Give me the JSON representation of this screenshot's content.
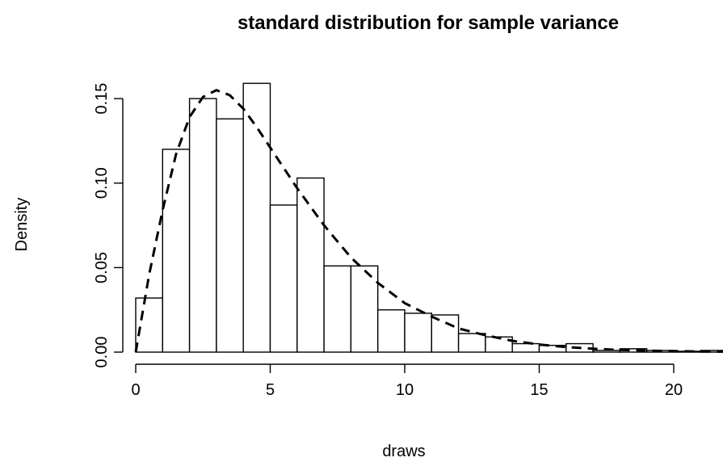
{
  "chart_data": {
    "type": "bar",
    "title": "standard distribution for sample variance",
    "xlabel": "draws",
    "ylabel": "Density",
    "xlim": [
      0,
      22
    ],
    "ylim": [
      0,
      0.16
    ],
    "x_ticks": [
      0,
      5,
      10,
      15,
      20
    ],
    "x_tick_labels": [
      "0",
      "5",
      "10",
      "15",
      "20"
    ],
    "y_ticks": [
      0,
      0.05,
      0.1,
      0.15
    ],
    "y_tick_labels": [
      "0.00",
      "0.05",
      "0.10",
      "0.15"
    ],
    "bin_edges": [
      0,
      1,
      2,
      3,
      4,
      5,
      6,
      7,
      8,
      9,
      10,
      11,
      12,
      13,
      14,
      15,
      16,
      17,
      18,
      19,
      20,
      21,
      22
    ],
    "values": [
      0.032,
      0.12,
      0.15,
      0.138,
      0.159,
      0.087,
      0.103,
      0.051,
      0.051,
      0.025,
      0.023,
      0.022,
      0.011,
      0.009,
      0.005,
      0.004,
      0.005,
      0.001,
      0.002,
      0.001,
      0.0005,
      0.001
    ],
    "density_curve": {
      "style": "dashed",
      "x": [
        0,
        0.5,
        1,
        1.5,
        2,
        2.5,
        3,
        3.5,
        4,
        4.5,
        5,
        6,
        7,
        8,
        9,
        10,
        11,
        12,
        13,
        14,
        15,
        16,
        17,
        18,
        19,
        20,
        21,
        22
      ],
      "y": [
        0,
        0.046,
        0.084,
        0.117,
        0.139,
        0.151,
        0.155,
        0.152,
        0.144,
        0.133,
        0.121,
        0.097,
        0.075,
        0.056,
        0.041,
        0.029,
        0.021,
        0.014,
        0.01,
        0.0067,
        0.0045,
        0.003,
        0.002,
        0.0013,
        0.0009,
        0.0006,
        0.0004,
        0.0003
      ]
    },
    "grid": false,
    "legend": "none"
  }
}
